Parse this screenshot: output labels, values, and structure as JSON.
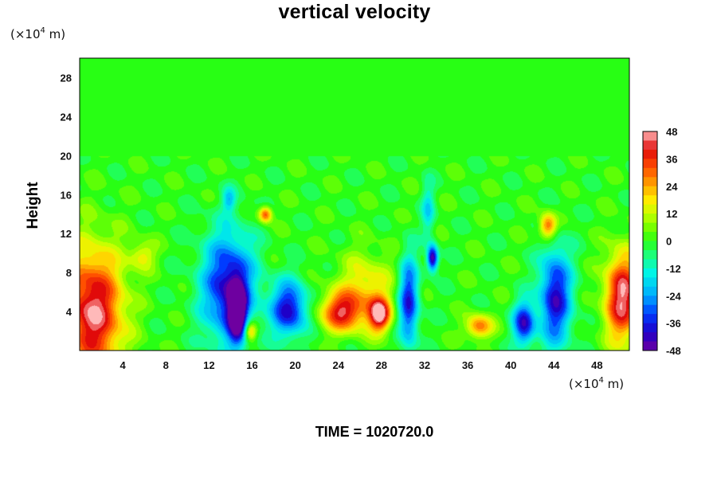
{
  "chart_data": {
    "type": "heatmap",
    "title": "vertical velocity",
    "ylabel": "Height",
    "xlabel": "",
    "x_unit": {
      "prefix": "(×10",
      "exp": "4",
      "suffix": " m)"
    },
    "y_unit": {
      "prefix": "(×10",
      "exp": "4",
      "suffix": " m)"
    },
    "xlim": [
      0,
      51
    ],
    "ylim": [
      0,
      30
    ],
    "x_ticks": [
      4,
      8,
      12,
      16,
      20,
      24,
      28,
      32,
      36,
      40,
      44,
      48
    ],
    "y_ticks": [
      4,
      8,
      12,
      16,
      20,
      24,
      28
    ],
    "colorbar": {
      "range": [
        -48,
        48
      ],
      "step": 4,
      "tick_labels": [
        48,
        36,
        24,
        12,
        0,
        -12,
        -24,
        -36,
        -48
      ]
    },
    "background_value": 0,
    "features": [
      {
        "x": 1.2,
        "y": 4.0,
        "rx": 2.8,
        "ry": 6.5,
        "value": 46
      },
      {
        "x": 5.8,
        "y": 9.8,
        "rx": 1.2,
        "ry": 1.4,
        "value": 16
      },
      {
        "x": 13.8,
        "y": 6.5,
        "rx": 2.4,
        "ry": 5.5,
        "value": -42
      },
      {
        "x": 14.6,
        "y": 4.0,
        "rx": 0.8,
        "ry": 3.0,
        "value": -48
      },
      {
        "x": 15.8,
        "y": 2.0,
        "rx": 0.6,
        "ry": 1.0,
        "value": 30
      },
      {
        "x": 13.8,
        "y": 15.5,
        "rx": 0.6,
        "ry": 1.2,
        "value": -18
      },
      {
        "x": 17.2,
        "y": 14.0,
        "rx": 0.6,
        "ry": 0.8,
        "value": 34
      },
      {
        "x": 19.4,
        "y": 4.3,
        "rx": 1.7,
        "ry": 2.8,
        "value": -40
      },
      {
        "x": 24.3,
        "y": 4.0,
        "rx": 2.0,
        "ry": 2.0,
        "value": 38
      },
      {
        "x": 26.5,
        "y": 6.5,
        "rx": 2.5,
        "ry": 3.5,
        "value": 18
      },
      {
        "x": 27.8,
        "y": 3.7,
        "rx": 1.0,
        "ry": 1.7,
        "value": 46
      },
      {
        "x": 30.5,
        "y": 5.0,
        "rx": 0.9,
        "ry": 4.5,
        "value": -38
      },
      {
        "x": 32.7,
        "y": 9.5,
        "rx": 0.5,
        "ry": 1.3,
        "value": -48
      },
      {
        "x": 32.3,
        "y": 14.5,
        "rx": 0.6,
        "ry": 2.8,
        "value": -16
      },
      {
        "x": 37.0,
        "y": 2.5,
        "rx": 1.2,
        "ry": 1.2,
        "value": 30
      },
      {
        "x": 41.2,
        "y": 2.8,
        "rx": 1.0,
        "ry": 2.2,
        "value": -40
      },
      {
        "x": 43.4,
        "y": 12.8,
        "rx": 0.8,
        "ry": 1.3,
        "value": 34
      },
      {
        "x": 44.1,
        "y": 5.5,
        "rx": 1.5,
        "ry": 5.0,
        "value": -40
      },
      {
        "x": 50.3,
        "y": 5.5,
        "rx": 1.6,
        "ry": 4.5,
        "value": 46
      }
    ]
  },
  "footer": {
    "time_label": "TIME = 1020720.0"
  }
}
